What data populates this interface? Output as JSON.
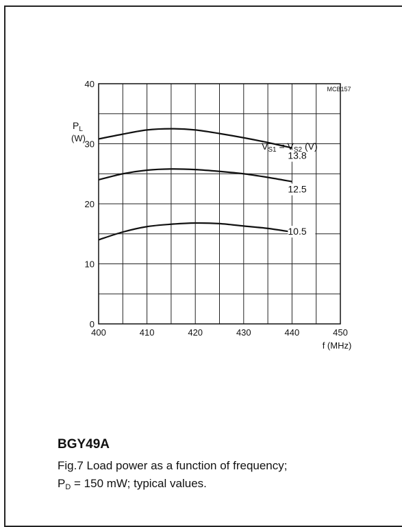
{
  "chart_data": {
    "type": "line",
    "code": "MCB157",
    "ylabel": {
      "main": "P",
      "sub": "L",
      "unit": "(W)"
    },
    "xlabel": "f  (MHz)",
    "xlim": [
      400,
      450
    ],
    "ylim": [
      0,
      40
    ],
    "x_ticks": [
      400,
      410,
      420,
      430,
      440,
      450
    ],
    "y_ticks": [
      0,
      10,
      20,
      30,
      40
    ],
    "grid": true,
    "legend_title": {
      "v1": "V",
      "s1": "S1",
      "eq": " = V",
      "s2": "S2",
      "unit": " (V)"
    },
    "series": [
      {
        "name": "13.8",
        "x": [
          400,
          405,
          410,
          415,
          420,
          425,
          430,
          435,
          440
        ],
        "values": [
          30.8,
          31.6,
          32.3,
          32.5,
          32.3,
          31.7,
          31.0,
          30.2,
          29.3
        ]
      },
      {
        "name": "12.5",
        "x": [
          400,
          405,
          410,
          415,
          420,
          425,
          430,
          435,
          440
        ],
        "values": [
          24.0,
          25.0,
          25.6,
          25.8,
          25.7,
          25.4,
          25.0,
          24.4,
          23.7
        ]
      },
      {
        "name": "10.5",
        "x": [
          400,
          405,
          410,
          415,
          420,
          425,
          430,
          435,
          440
        ],
        "values": [
          14.0,
          15.3,
          16.2,
          16.6,
          16.8,
          16.7,
          16.3,
          15.9,
          15.3
        ]
      }
    ]
  },
  "caption": {
    "title": "BGY49A",
    "line1": "Fig.7 Load power as a function of frequency;",
    "line2_sym": "P",
    "line2_sub": "D",
    "line2_rest": " = 150 mW; typical values."
  }
}
